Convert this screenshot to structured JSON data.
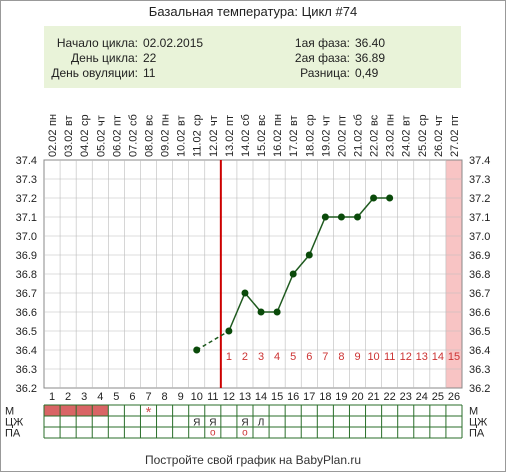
{
  "chart_data": {
    "type": "line",
    "title": "Базальная температура: Цикл #74",
    "info": {
      "start_label": "Начало цикла:",
      "start_value": "02.02.2015",
      "cycle_day_label": "День цикла:",
      "cycle_day_value": "22",
      "ovulation_label": "День овуляции:",
      "ovulation_value": "11",
      "phase1_label": "1ая фаза:",
      "phase1_value": "36.40",
      "phase2_label": "2ая фаза:",
      "phase2_value": "36.89",
      "diff_label": "Разница:",
      "diff_value": "0,49"
    },
    "days": [
      "1",
      "2",
      "3",
      "4",
      "5",
      "6",
      "7",
      "8",
      "9",
      "10",
      "11",
      "12",
      "13",
      "14",
      "15",
      "16",
      "17",
      "18",
      "19",
      "20",
      "21",
      "22",
      "23",
      "24",
      "25",
      "26"
    ],
    "weekdays": [
      "пн",
      "вт",
      "ср",
      "чт",
      "пт",
      "сб",
      "вс",
      "пн",
      "вт",
      "ср",
      "чт",
      "пт",
      "сб",
      "вс",
      "пн",
      "вт",
      "ср",
      "чт",
      "пт",
      "сб",
      "вс",
      "пн",
      "вт",
      "ср",
      "чт",
      "пт"
    ],
    "dates": [
      "02.02",
      "03.02",
      "04.02",
      "05.02",
      "06.02",
      "07.02",
      "08.02",
      "09.02",
      "10.02",
      "11.02",
      "12.02",
      "13.02",
      "14.02",
      "15.02",
      "16.02",
      "17.02",
      "18.02",
      "19.02",
      "20.02",
      "21.02",
      "22.02",
      "23.02",
      "24.02",
      "25.02",
      "26.02",
      "27.02"
    ],
    "y_ticks": [
      "36.2",
      "36.3",
      "36.4",
      "36.5",
      "36.6",
      "36.7",
      "36.8",
      "36.9",
      "37.0",
      "37.1",
      "37.2",
      "37.3",
      "37.4"
    ],
    "ylim": [
      36.2,
      37.4
    ],
    "series": [
      {
        "points": [
          {
            "day": 10,
            "temp": 36.4
          },
          {
            "day": 12,
            "temp": 36.5
          },
          {
            "day": 13,
            "temp": 36.7
          },
          {
            "day": 14,
            "temp": 36.6
          },
          {
            "day": 15,
            "temp": 36.6
          },
          {
            "day": 16,
            "temp": 36.8
          },
          {
            "day": 17,
            "temp": 36.9
          },
          {
            "day": 18,
            "temp": 37.1
          },
          {
            "day": 19,
            "temp": 37.1
          },
          {
            "day": 20,
            "temp": 37.1
          },
          {
            "day": 21,
            "temp": 37.2
          },
          {
            "day": 22,
            "temp": 37.2
          }
        ]
      }
    ],
    "ovulation_day": 11,
    "luteal_day_labels": [
      "1",
      "2",
      "3",
      "4",
      "5",
      "6",
      "7",
      "8",
      "9",
      "10",
      "11",
      "12",
      "13",
      "14",
      "15"
    ],
    "luteal_start_day": 12,
    "luteal_highlight_day": 26,
    "rows": {
      "labels": [
        "М",
        "ЦЖ",
        "ПА"
      ],
      "menses_days": [
        1,
        2,
        3,
        4
      ],
      "m_marks": [
        {
          "day": 7,
          "text": "*"
        }
      ],
      "czh_marks": [
        {
          "day": 10,
          "text": "Я"
        },
        {
          "day": 11,
          "text": "Я"
        },
        {
          "day": 13,
          "text": "Я"
        },
        {
          "day": 14,
          "text": "Л"
        }
      ],
      "pa_marks": [
        {
          "day": 11,
          "text": "o"
        },
        {
          "day": 13,
          "text": "o"
        }
      ]
    },
    "footer": "Постройте свой график на BabyPlan.ru",
    "colors": {
      "line": "#1f5a1f",
      "point": "#0a4a0a",
      "ovulation": "#cc0000",
      "luteal_text": "#cc3333",
      "menses": "#d96565",
      "highlight": "#f8c4c4",
      "info_bg": "#e9f3d9",
      "grid": "#bbbbbb"
    }
  }
}
